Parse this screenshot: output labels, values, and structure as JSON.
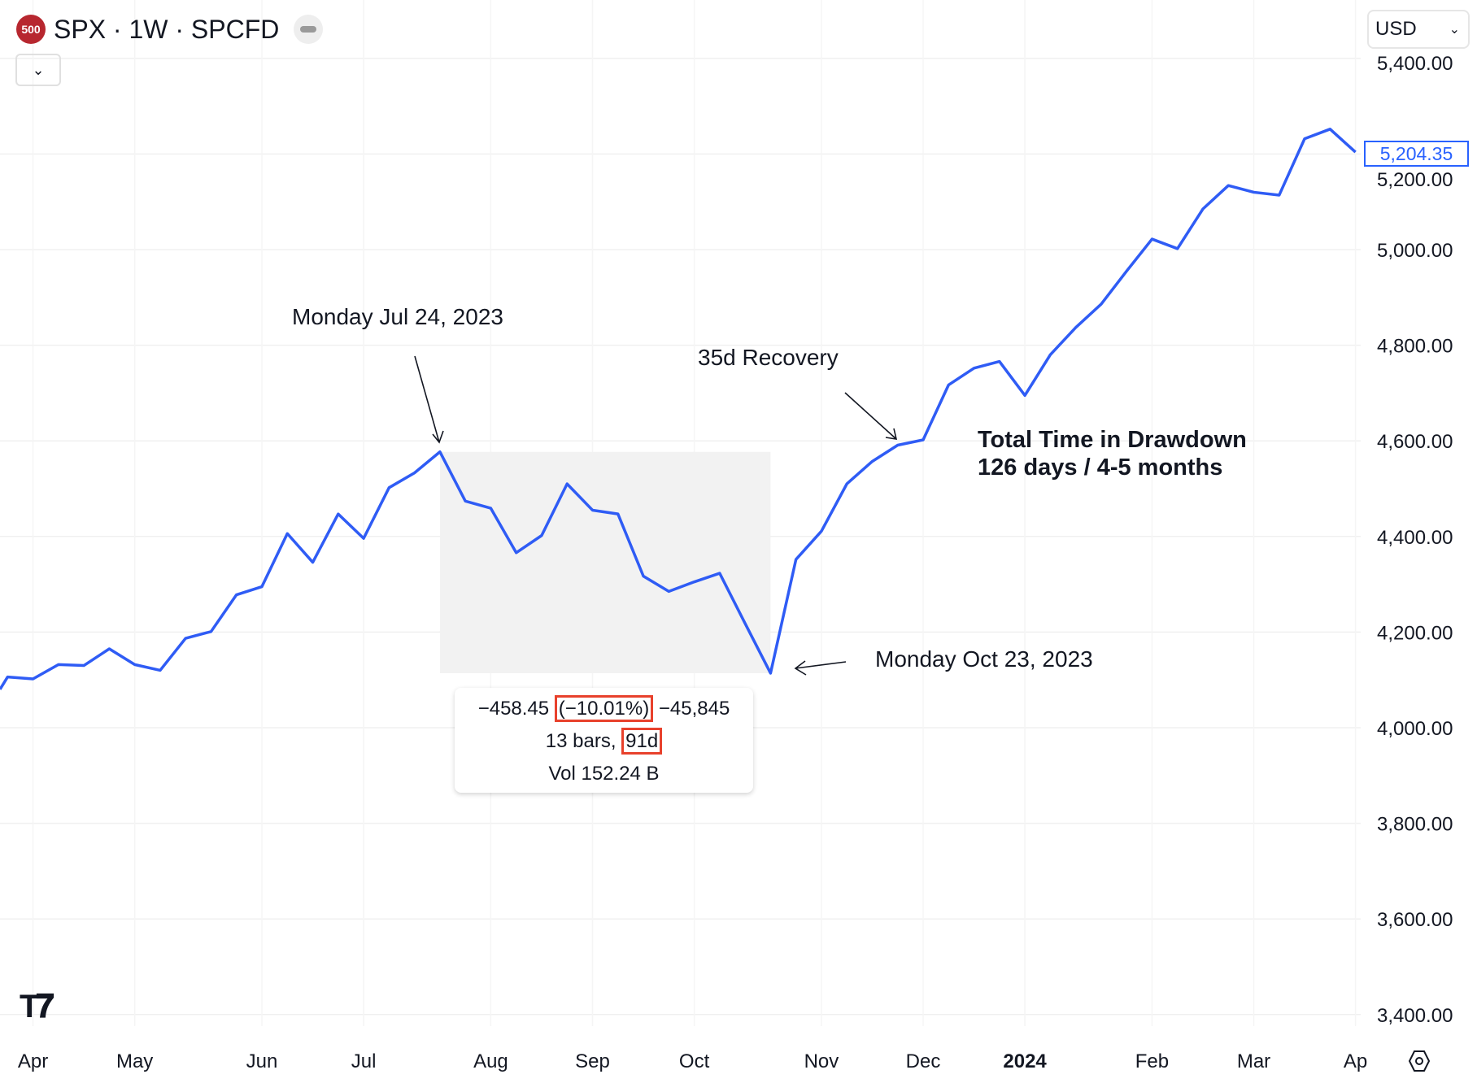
{
  "header": {
    "logo_text": "500",
    "title": "SPX · 1W · SPCFD",
    "currency": "USD",
    "last_price": "5,204.35"
  },
  "annotations": {
    "peak_label": "Monday Jul 24, 2023",
    "recovery_label": "35d Recovery",
    "drawdown_title": "Total Time in Drawdown",
    "drawdown_detail": "126 days / 4-5 months",
    "trough_label": "Monday Oct 23, 2023"
  },
  "measure_tooltip": {
    "change": "−458.45",
    "percent": "(−10.01%)",
    "ticks": "−45,845",
    "bars": "13 bars,",
    "days": "91d",
    "volume": "Vol 152.24 B"
  },
  "colors": {
    "line": "#2f5cf5",
    "shade": "#f2f2f2",
    "highlight": "#e8412c",
    "grid": "#f0f3fa"
  },
  "chart_data": {
    "type": "line",
    "title": "",
    "xlabel": "",
    "ylabel": "",
    "ylim": [
      3400,
      5400
    ],
    "grid": true,
    "y_ticks": [
      "5,400.00",
      "5,200.00",
      "5,000.00",
      "4,800.00",
      "4,600.00",
      "4,400.00",
      "4,200.00",
      "4,000.00",
      "3,800.00",
      "3,600.00",
      "3,400.00"
    ],
    "y_tick_values": [
      5400,
      5200,
      5000,
      4800,
      4600,
      4400,
      4200,
      4000,
      3800,
      3600,
      3400
    ],
    "x_ticks": [
      {
        "label": "Apr",
        "date": "2023-04-03"
      },
      {
        "label": "May",
        "date": "2023-05-01"
      },
      {
        "label": "Jun",
        "date": "2023-06-05"
      },
      {
        "label": "Jul",
        "date": "2023-07-03"
      },
      {
        "label": "Aug",
        "date": "2023-08-07"
      },
      {
        "label": "Sep",
        "date": "2023-09-04"
      },
      {
        "label": "Oct",
        "date": "2023-10-02"
      },
      {
        "label": "Nov",
        "date": "2023-11-06"
      },
      {
        "label": "Dec",
        "date": "2023-12-04"
      },
      {
        "label": "2024",
        "date": "2024-01-01"
      },
      {
        "label": "Feb",
        "date": "2024-02-05"
      },
      {
        "label": "Mar",
        "date": "2024-03-04"
      },
      {
        "label": "Ap",
        "date": "2024-04-01"
      }
    ],
    "x": [
      "2023-03-20",
      "2023-03-27",
      "2023-04-03",
      "2023-04-10",
      "2023-04-17",
      "2023-04-24",
      "2023-05-01",
      "2023-05-08",
      "2023-05-15",
      "2023-05-22",
      "2023-05-29",
      "2023-06-05",
      "2023-06-12",
      "2023-06-19",
      "2023-06-26",
      "2023-07-03",
      "2023-07-10",
      "2023-07-17",
      "2023-07-24",
      "2023-07-31",
      "2023-08-07",
      "2023-08-14",
      "2023-08-21",
      "2023-08-28",
      "2023-09-04",
      "2023-09-11",
      "2023-09-18",
      "2023-09-25",
      "2023-10-02",
      "2023-10-09",
      "2023-10-16",
      "2023-10-23",
      "2023-10-30",
      "2023-11-06",
      "2023-11-13",
      "2023-11-20",
      "2023-11-27",
      "2023-12-04",
      "2023-12-11",
      "2023-12-18",
      "2023-12-25",
      "2024-01-01",
      "2024-01-08",
      "2024-01-15",
      "2024-01-22",
      "2024-01-29",
      "2024-02-05",
      "2024-02-12",
      "2024-02-19",
      "2024-02-26",
      "2024-03-04",
      "2024-03-11",
      "2024-03-18",
      "2024-03-25",
      "2024-04-01"
    ],
    "series": [
      {
        "values": [
          4020,
          4106,
          4102,
          4132,
          4130,
          4165,
          4132,
          4120,
          4187,
          4201,
          4278,
          4295,
          4406,
          4346,
          4447,
          4396,
          4502,
          4533,
          4577,
          4474,
          4459,
          4366,
          4402,
          4510,
          4455,
          4447,
          4317,
          4285,
          4305,
          4323,
          4218,
          4114,
          4352,
          4411,
          4510,
          4557,
          4591,
          4602,
          4717,
          4752,
          4766,
          4695,
          4780,
          4837,
          4886,
          4955,
          5022,
          5002,
          5085,
          5134,
          5120,
          5114,
          5232,
          5252,
          5204
        ]
      }
    ],
    "drawdown_range": {
      "start": "2023-07-24",
      "end": "2023-10-23"
    }
  }
}
